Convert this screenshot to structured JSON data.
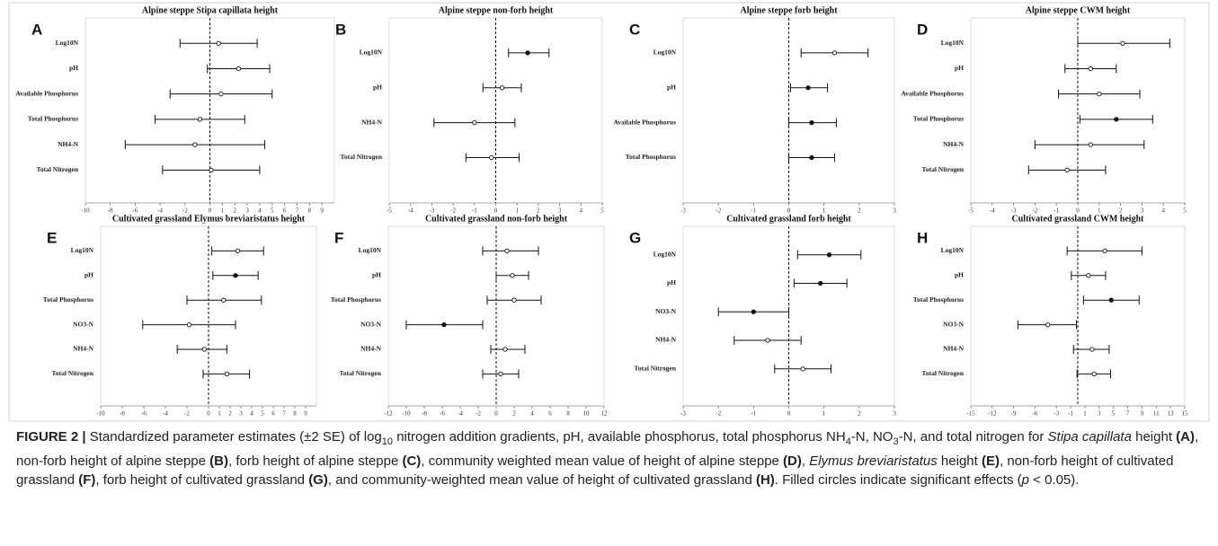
{
  "chart_data": [
    {
      "type": "forest",
      "label": "A",
      "title": "Alpine steppe Stipa capillata height",
      "categories": [
        "Log10N",
        "pH",
        "Available Phosphorus",
        "Total Phosphorus",
        "NH4-N",
        "Total Nitrogen"
      ],
      "values": [
        0.7,
        2.3,
        0.9,
        -0.8,
        -1.2,
        0.1
      ],
      "ci_low": [
        -2.4,
        -0.2,
        -3.2,
        -4.4,
        -6.8,
        -3.8
      ],
      "ci_high": [
        3.8,
        4.8,
        5.0,
        2.8,
        4.4,
        4.0
      ],
      "significant": [
        false,
        false,
        false,
        false,
        false,
        false
      ],
      "xlim": [
        -10,
        10
      ],
      "xticks": [
        -10,
        -8,
        -6,
        -4,
        -2,
        0,
        1,
        2,
        3,
        4,
        5,
        6,
        7,
        8,
        9
      ]
    },
    {
      "type": "forest",
      "label": "B",
      "title": "Alpine steppe non-forb height",
      "categories": [
        "Log10N",
        "pH",
        "NH4-N",
        "Total Nitrogen"
      ],
      "values": [
        1.5,
        0.3,
        -1.0,
        -0.2
      ],
      "ci_low": [
        0.6,
        -0.6,
        -2.9,
        -1.4
      ],
      "ci_high": [
        2.5,
        1.2,
        0.9,
        1.1
      ],
      "significant": [
        true,
        false,
        false,
        false
      ],
      "xlim": [
        -5,
        5
      ],
      "xticks": [
        -5,
        -4,
        -3,
        -2,
        -1,
        0,
        1,
        2,
        3,
        4,
        5
      ]
    },
    {
      "type": "forest",
      "label": "C",
      "title": "Alpine steppe forb height",
      "categories": [
        "Log10N",
        "pH",
        "Available Phosphorus",
        "Total Phosphorus"
      ],
      "values": [
        1.3,
        0.55,
        0.65,
        0.65
      ],
      "ci_low": [
        0.35,
        0.05,
        0.0,
        0.0
      ],
      "ci_high": [
        2.25,
        1.1,
        1.35,
        1.3
      ],
      "significant": [
        false,
        true,
        true,
        true
      ],
      "xlim": [
        -3,
        3
      ],
      "xticks": [
        -3,
        -2,
        -1,
        0,
        1,
        2,
        3
      ]
    },
    {
      "type": "forest",
      "label": "D",
      "title": "Alpine steppe CWM height",
      "categories": [
        "Log10N",
        "pH",
        "Available Phosphorus",
        "Total Phosphorus",
        "NH4-N",
        "Total Nitrogen"
      ],
      "values": [
        2.1,
        0.6,
        1.0,
        1.8,
        0.6,
        -0.5
      ],
      "ci_low": [
        0.0,
        -0.6,
        -0.9,
        0.1,
        -2.0,
        -2.3
      ],
      "ci_high": [
        4.3,
        1.8,
        2.9,
        3.5,
        3.1,
        1.3
      ],
      "significant": [
        false,
        false,
        false,
        true,
        false,
        false
      ],
      "xlim": [
        -5,
        5
      ],
      "xticks": [
        -5,
        -4,
        -3,
        -2,
        -1,
        0,
        1,
        2,
        3,
        4,
        5
      ]
    },
    {
      "type": "forest",
      "label": "E",
      "title": "Cultivated grassland Elymus breviaristatus height",
      "categories": [
        "Log10N",
        "pH",
        "Total Phosphorus",
        "NO3-N",
        "NH4-N",
        "Total Nitrogen"
      ],
      "values": [
        2.7,
        2.5,
        1.4,
        -1.8,
        -0.4,
        1.7
      ],
      "ci_low": [
        0.3,
        0.4,
        -2.0,
        -6.1,
        -2.9,
        -0.5
      ],
      "ci_high": [
        5.1,
        4.6,
        4.9,
        2.5,
        1.7,
        3.8
      ],
      "significant": [
        false,
        true,
        false,
        false,
        false,
        false
      ],
      "xlim": [
        -10,
        10
      ],
      "xticks": [
        -10,
        -8,
        -6,
        -4,
        -2,
        0,
        1,
        2,
        3,
        4,
        5,
        6,
        7,
        8,
        9
      ]
    },
    {
      "type": "forest",
      "label": "F",
      "title": "Cultivated grassland non-forb height",
      "categories": [
        "Log10N",
        "pH",
        "Total Phosphorus",
        "NO3-N",
        "NH4-N",
        "Total Nitrogen"
      ],
      "values": [
        1.2,
        1.8,
        2.0,
        -5.8,
        1.0,
        0.5
      ],
      "ci_low": [
        -1.5,
        0.0,
        -1.0,
        -10.0,
        -0.6,
        -1.5
      ],
      "ci_high": [
        4.7,
        3.6,
        5.0,
        -1.5,
        3.2,
        2.5
      ],
      "significant": [
        false,
        false,
        false,
        true,
        false,
        false
      ],
      "xlim": [
        -12,
        12
      ],
      "xticks": [
        -12,
        -10,
        -8,
        -6,
        -4,
        -2,
        0,
        2,
        4,
        6,
        8,
        10,
        12
      ]
    },
    {
      "type": "forest",
      "label": "G",
      "title": "Cultivated grassland forb height",
      "categories": [
        "Log10N",
        "pH",
        "NO3-N",
        "NH4-N",
        "Total Nitrogen"
      ],
      "values": [
        1.15,
        0.9,
        -1.0,
        -0.6,
        0.4
      ],
      "ci_low": [
        0.25,
        0.15,
        -2.0,
        -1.55,
        -0.4
      ],
      "ci_high": [
        2.05,
        1.65,
        0.0,
        0.35,
        1.2
      ],
      "significant": [
        true,
        true,
        true,
        false,
        false
      ],
      "xlim": [
        -3,
        3
      ],
      "xticks": [
        -3,
        -2,
        -1,
        0,
        1,
        2,
        3
      ]
    },
    {
      "type": "forest",
      "label": "H",
      "title": "Cultivated grassland CWM height",
      "categories": [
        "Log10N",
        "pH",
        "Total Phosphorus",
        "NO3-N",
        "NH4-N",
        "Total Nitrogen"
      ],
      "values": [
        3.8,
        1.5,
        4.7,
        -4.2,
        2.0,
        2.3
      ],
      "ci_low": [
        -1.5,
        -0.9,
        0.8,
        -8.4,
        -0.6,
        -0.1
      ],
      "ci_high": [
        9.0,
        3.9,
        8.6,
        -0.2,
        4.4,
        4.6
      ],
      "significant": [
        false,
        false,
        true,
        false,
        false,
        false
      ],
      "xlim": [
        -15,
        15
      ],
      "xticks": [
        -15,
        -12,
        -9,
        -6,
        -3,
        -1,
        1,
        3,
        5,
        7,
        9,
        11,
        13,
        15
      ]
    }
  ],
  "caption": [
    {
      "text": "FIGURE 2 |",
      "style": "bold"
    },
    {
      "text": " Standardized parameter estimates (±2 SE) of log",
      "style": "normal"
    },
    {
      "text": "10",
      "style": "sub"
    },
    {
      "text": " nitrogen addition gradients, pH, available phosphorus, total phosphorus NH",
      "style": "normal"
    },
    {
      "text": "4",
      "style": "sub"
    },
    {
      "text": "-N, NO",
      "style": "normal"
    },
    {
      "text": "3",
      "style": "sub"
    },
    {
      "text": "-N, and total nitrogen for ",
      "style": "normal"
    },
    {
      "text": "Stipa capillata",
      "style": "italic"
    },
    {
      "text": " height ",
      "style": "normal"
    },
    {
      "text": "(A)",
      "style": "bold"
    },
    {
      "text": ", non-forb height of alpine steppe ",
      "style": "normal"
    },
    {
      "text": "(B)",
      "style": "bold"
    },
    {
      "text": ", forb height of alpine steppe ",
      "style": "normal"
    },
    {
      "text": "(C)",
      "style": "bold"
    },
    {
      "text": ", community weighted mean value of height of alpine steppe ",
      "style": "normal"
    },
    {
      "text": "(D)",
      "style": "bold"
    },
    {
      "text": ", ",
      "style": "normal"
    },
    {
      "text": "Elymus breviaristatus",
      "style": "italic"
    },
    {
      "text": " height ",
      "style": "normal"
    },
    {
      "text": "(E)",
      "style": "bold"
    },
    {
      "text": ", non-forb height of cultivated grassland ",
      "style": "normal"
    },
    {
      "text": "(F)",
      "style": "bold"
    },
    {
      "text": ", forb height of cultivated grassland ",
      "style": "normal"
    },
    {
      "text": "(G)",
      "style": "bold"
    },
    {
      "text": ", and community-weighted mean value of height of cultivated grassland ",
      "style": "normal"
    },
    {
      "text": "(H)",
      "style": "bold"
    },
    {
      "text": ". Filled circles indicate significant effects (",
      "style": "normal"
    },
    {
      "text": "p",
      "style": "italic"
    },
    {
      "text": " < 0.05).",
      "style": "normal"
    }
  ]
}
